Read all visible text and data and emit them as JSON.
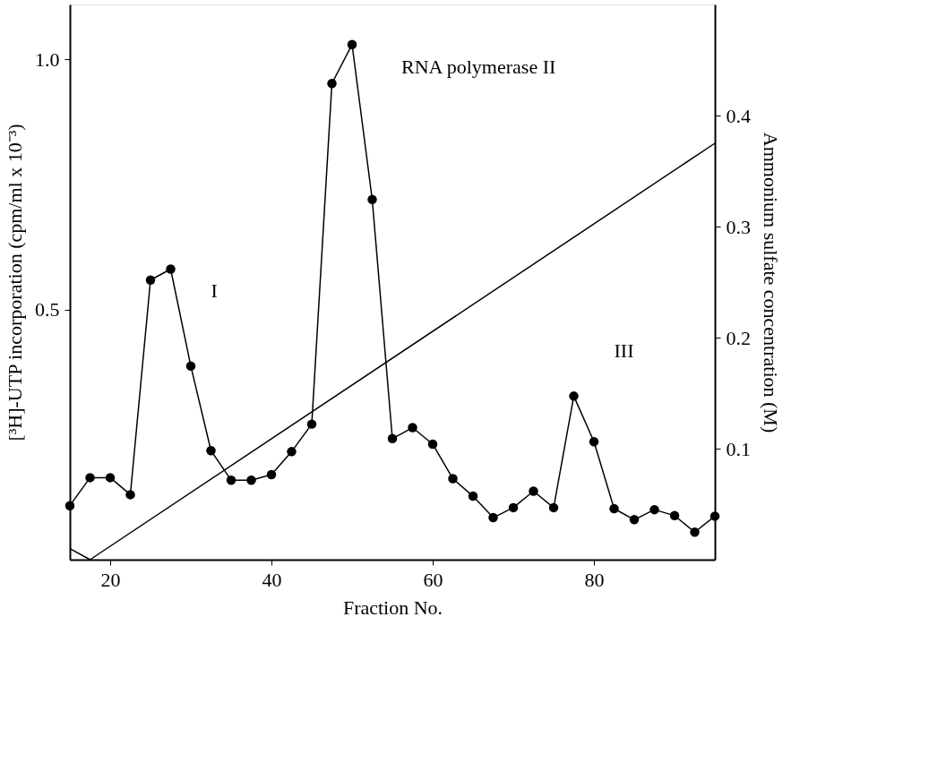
{
  "chart_data": {
    "type": "line",
    "xlabel": "Fraction  No.",
    "ylabel": "[³H]-UTP incorporation (cpm/ml x 10⁻³)",
    "y2label": "Ammonium sulfate concentration (M)",
    "x": [
      15,
      17.5,
      20,
      22.5,
      25,
      27.5,
      30,
      32.5,
      35,
      37.5,
      40,
      42.5,
      45,
      47.5,
      50,
      52.5,
      55,
      57.5,
      60,
      62.5,
      65,
      67.5,
      70,
      72.5,
      75,
      77.5,
      80,
      82.5,
      85,
      87.5,
      90,
      92.5,
      95
    ],
    "series": [
      {
        "color": "#000000",
        "values": [
          0.108,
          0.164,
          0.164,
          0.13,
          0.559,
          0.581,
          0.387,
          0.218,
          0.159,
          0.159,
          0.17,
          0.216,
          0.271,
          0.952,
          1.03,
          0.72,
          0.242,
          0.264,
          0.231,
          0.162,
          0.127,
          0.084,
          0.104,
          0.137,
          0.104,
          0.327,
          0.236,
          0.102,
          0.08,
          0.1,
          0.088,
          0.055,
          0.087
        ]
      },
      {
        "type": "line",
        "axis": "y2",
        "marker": "none",
        "color": "#000000",
        "x": [
          15,
          17.5,
          95
        ],
        "values": [
          0.01,
          0,
          0.375
        ]
      }
    ],
    "xlim": [
      15,
      95
    ],
    "xticks": [
      20,
      40,
      60,
      80
    ],
    "ylim": [
      0,
      1.11
    ],
    "yticks": [
      0.5,
      {
        "value": 1,
        "label": "1.0"
      }
    ],
    "y2lim": [
      0,
      0.5
    ],
    "y2ticks": [
      0.1,
      0.2,
      0.3,
      0.4
    ],
    "marker": "circle",
    "grid": false,
    "annotations": [
      "I",
      "RNA polymerase II",
      "III"
    ]
  }
}
